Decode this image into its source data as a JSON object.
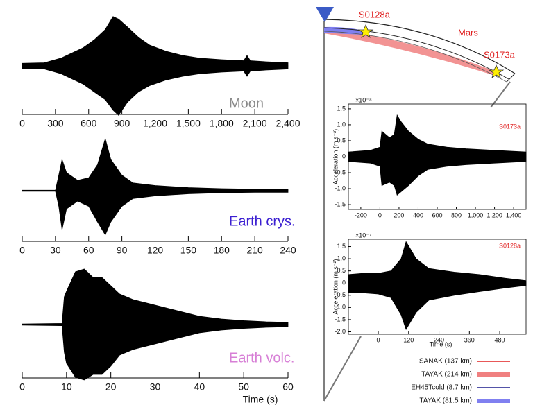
{
  "chart_data": [
    {
      "type": "area",
      "label": "Moon",
      "label_color": "#8a8a8a",
      "x": [
        0,
        200,
        350,
        450,
        550,
        650,
        750,
        820,
        870,
        950,
        1050,
        1150,
        1300,
        1450,
        1600,
        1800,
        2000,
        2030,
        2060,
        2200,
        2400
      ],
      "values": [
        0.05,
        0.06,
        0.15,
        0.25,
        0.35,
        0.5,
        0.7,
        0.95,
        0.9,
        0.75,
        0.55,
        0.4,
        0.28,
        0.2,
        0.15,
        0.12,
        0.1,
        0.2,
        0.1,
        0.08,
        0.06
      ],
      "lower": [
        -0.05,
        -0.06,
        -0.15,
        -0.25,
        -0.35,
        -0.5,
        -0.65,
        -0.85,
        -0.95,
        -0.7,
        -0.5,
        -0.38,
        -0.27,
        -0.2,
        -0.15,
        -0.12,
        -0.1,
        -0.2,
        -0.1,
        -0.08,
        -0.06
      ],
      "xlim": [
        0,
        2400
      ],
      "xticks": [
        0,
        300,
        600,
        900,
        {
          "value": 1200,
          "label": "1,200"
        },
        {
          "value": 1500,
          "label": "1,500"
        },
        {
          "value": 1800,
          "label": "1,800"
        },
        {
          "value": 2100,
          "label": "2,100"
        },
        {
          "value": 2400,
          "label": "2,400"
        }
      ]
    },
    {
      "type": "area",
      "label": "Earth crys.",
      "label_color": "#3b1fd1",
      "x": [
        0,
        30,
        33,
        36,
        40,
        50,
        60,
        68,
        75,
        80,
        90,
        100,
        120,
        150,
        180,
        210,
        240
      ],
      "values": [
        0.01,
        0.01,
        0.3,
        0.6,
        0.35,
        0.2,
        0.25,
        0.5,
        1.0,
        0.6,
        0.3,
        0.15,
        0.1,
        0.06,
        0.04,
        0.03,
        0.03
      ],
      "lower": [
        -0.01,
        -0.01,
        -0.3,
        -0.75,
        -0.35,
        -0.2,
        -0.3,
        -0.6,
        -0.85,
        -0.6,
        -0.3,
        -0.15,
        -0.1,
        -0.06,
        -0.04,
        -0.03,
        -0.03
      ],
      "xlim": [
        0,
        240
      ],
      "xticks": [
        0,
        30,
        60,
        90,
        120,
        150,
        180,
        210,
        240
      ]
    },
    {
      "type": "area",
      "label": "Earth volc.",
      "label_color": "#d77fd6",
      "x": [
        0,
        9,
        9.5,
        10,
        12,
        14,
        16,
        18,
        20,
        22,
        25,
        30,
        35,
        40,
        45,
        50,
        55,
        60
      ],
      "values": [
        0.01,
        0.02,
        0.5,
        0.6,
        0.95,
        1.0,
        0.85,
        0.85,
        0.7,
        0.55,
        0.45,
        0.35,
        0.25,
        0.15,
        0.1,
        0.07,
        0.05,
        0.04
      ],
      "lower": [
        -0.01,
        -0.02,
        -0.5,
        -0.7,
        -0.95,
        -1.0,
        -0.9,
        -0.9,
        -0.75,
        -0.55,
        -0.45,
        -0.35,
        -0.25,
        -0.15,
        -0.1,
        -0.07,
        -0.05,
        -0.04
      ],
      "xlim": [
        0,
        60
      ],
      "xticks": [
        0,
        10,
        20,
        30,
        40,
        50,
        60
      ],
      "xlabel": "Time (s)"
    },
    {
      "type": "area",
      "label": "S0173a",
      "label_color": "#e02020",
      "multiplier": "×10⁻⁸",
      "ylabel": "Acceleration (m s⁻²)",
      "x": [
        -330,
        -100,
        0,
        20,
        100,
        150,
        180,
        220,
        300,
        400,
        500,
        700,
        900,
        1200,
        1530
      ],
      "values": [
        0.15,
        0.2,
        0.3,
        0.8,
        0.6,
        0.7,
        1.3,
        1.1,
        0.8,
        0.55,
        0.4,
        0.3,
        0.25,
        0.2,
        0.15
      ],
      "lower": [
        -0.15,
        -0.2,
        -0.3,
        -0.9,
        -0.8,
        -0.9,
        -1.2,
        -1.1,
        -0.9,
        -0.6,
        -0.4,
        -0.3,
        -0.25,
        -0.2,
        -0.15
      ],
      "xlim": [
        -330,
        1530
      ],
      "xticks": [
        -200,
        0,
        200,
        400,
        600,
        800,
        {
          "value": 1000,
          "label": "1,000"
        },
        {
          "value": 1200,
          "label": "1,200"
        },
        {
          "value": 1400,
          "label": "1,400"
        }
      ],
      "ylim": [
        -1.65,
        1.65
      ],
      "yticks": [
        {
          "value": 1.5,
          "label": "1.5"
        },
        {
          "value": 1,
          "label": "1.0"
        },
        0.5,
        0,
        -0.5,
        {
          "value": -1,
          "label": "-1.0"
        },
        {
          "value": -1.5,
          "label": "-1.5"
        }
      ]
    },
    {
      "type": "area",
      "label": "S0128a",
      "label_color": "#e02020",
      "multiplier": "×10⁻⁷",
      "ylabel": "Acceleration (m s⁻²)",
      "xlabel": "Time (s)",
      "x": [
        -118,
        -60,
        0,
        50,
        90,
        110,
        150,
        200,
        300,
        400,
        500,
        584
      ],
      "values": [
        0.35,
        0.4,
        0.4,
        0.5,
        1.0,
        1.7,
        1.0,
        0.6,
        0.45,
        0.35,
        0.2,
        0.1
      ],
      "lower": [
        -0.4,
        -0.4,
        -0.45,
        -0.6,
        -1.3,
        -1.9,
        -1.2,
        -0.7,
        -0.5,
        -0.35,
        -0.2,
        -0.1
      ],
      "xlim": [
        -118,
        584
      ],
      "xticks": [
        0,
        120,
        240,
        360,
        480
      ],
      "ylim": [
        -2.1,
        1.8
      ],
      "yticks": [
        {
          "value": 1.5,
          "label": "1.5"
        },
        {
          "value": 1,
          "label": "1.0"
        },
        0.5,
        0,
        -0.5,
        {
          "value": -1,
          "label": "-1.0"
        },
        {
          "value": -1.5,
          "label": "-1.5"
        },
        {
          "value": -2,
          "label": "-2.0"
        }
      ]
    }
  ],
  "diagram": {
    "event_near": "S0128a",
    "planet": "Mars",
    "event_far": "S0173a",
    "legend": [
      {
        "label": "SANAK (137 km)",
        "color": "#e02020",
        "line_width": 1.5
      },
      {
        "label": "TAYAK (214 km)",
        "color": "#f08080",
        "line_width": 6
      },
      {
        "label": "EH45Tcold (8.7 km)",
        "color": "#1a1a8c",
        "line_width": 1.5
      },
      {
        "label": "TAYAK (81.5 km)",
        "color": "#8080f0",
        "line_width": 6
      }
    ]
  }
}
